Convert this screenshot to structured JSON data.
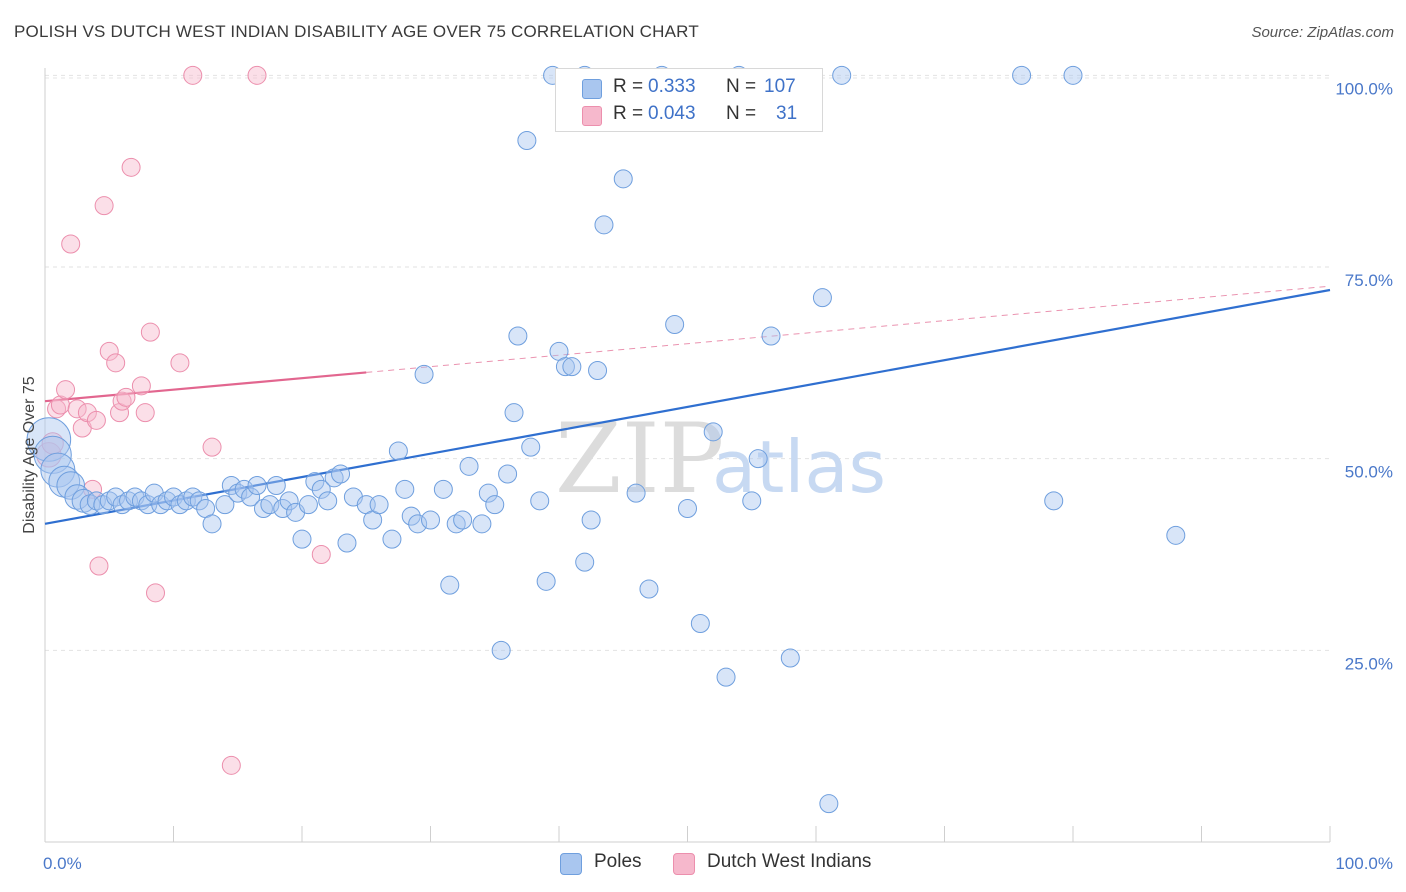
{
  "header": {
    "title": "POLISH VS DUTCH WEST INDIAN DISABILITY AGE OVER 75 CORRELATION CHART",
    "source": "Source: ZipAtlas.com"
  },
  "watermark": {
    "zip": "ZIP",
    "atlas": "atlas"
  },
  "legend_top": {
    "rows": [
      {
        "r_label": "R =",
        "r_value": "0.333",
        "n_label": "N =",
        "n_value": "107",
        "color": "#a9c6ef"
      },
      {
        "r_label": "R =",
        "r_value": "0.043",
        "n_label": "N =",
        "n_value": "31",
        "color": "#f6b8cc"
      }
    ]
  },
  "legend_bottom": {
    "items": [
      {
        "label": "Poles",
        "color": "#a9c6ef"
      },
      {
        "label": "Dutch West Indians",
        "color": "#f6b8cc"
      }
    ]
  },
  "chart_data": {
    "type": "scatter",
    "title": "POLISH VS DUTCH WEST INDIAN DISABILITY AGE OVER 75 CORRELATION CHART",
    "xlabel": "",
    "ylabel": "Disability Age Over 75",
    "xlim": [
      0,
      100
    ],
    "ylim": [
      0,
      102
    ],
    "x_ticks": [
      {
        "value": 0,
        "label": "0.0%"
      },
      {
        "value": 100,
        "label": "100.0%"
      }
    ],
    "y_ticks": [
      {
        "value": 25,
        "label": "25.0%"
      },
      {
        "value": 50,
        "label": "50.0%"
      },
      {
        "value": 75,
        "label": "75.0%"
      },
      {
        "value": 100,
        "label": "100.0%"
      }
    ],
    "grid": true,
    "legend_position": "bottom",
    "colors": {
      "poles_fill": "#a9c6ef",
      "poles_stroke": "#6f9fde",
      "poles_line": "#2f6fd0",
      "dwi_fill": "#f6b8cc",
      "dwi_stroke": "#ec8fad",
      "dwi_line": "#e2668f"
    },
    "series": [
      {
        "name": "Poles",
        "trend": {
          "x": [
            0,
            100
          ],
          "y": [
            41.5,
            72.0
          ],
          "dashed_from": null
        },
        "points": [
          [
            0.3,
            52.5,
            26
          ],
          [
            0.6,
            50.5,
            22
          ],
          [
            1.0,
            48.5,
            20
          ],
          [
            1.5,
            47.0,
            18
          ],
          [
            2.0,
            46.5,
            16
          ],
          [
            2.5,
            45.0,
            14
          ],
          [
            3.0,
            44.5,
            13
          ],
          [
            3.5,
            44.0,
            11
          ],
          [
            4.0,
            44.5,
            10
          ],
          [
            4.5,
            44.0,
            10
          ],
          [
            5.0,
            44.5,
            10
          ],
          [
            5.5,
            45.0,
            10
          ],
          [
            6.0,
            44.0,
            10
          ],
          [
            6.5,
            44.5,
            10
          ],
          [
            7.0,
            45.0,
            10
          ],
          [
            7.5,
            44.5,
            10
          ],
          [
            8.0,
            44.0,
            10
          ],
          [
            8.5,
            45.5,
            10
          ],
          [
            9.0,
            44.0,
            10
          ],
          [
            9.5,
            44.5,
            10
          ],
          [
            10.0,
            45.0,
            10
          ],
          [
            10.5,
            44.0,
            10
          ],
          [
            11.0,
            44.5,
            10
          ],
          [
            11.5,
            45.0,
            10
          ],
          [
            12.0,
            44.5,
            10
          ],
          [
            12.5,
            43.5,
            10
          ],
          [
            13.0,
            41.5,
            10
          ],
          [
            14.0,
            44.0,
            10
          ],
          [
            14.5,
            46.5,
            10
          ],
          [
            15.0,
            45.5,
            10
          ],
          [
            15.5,
            46.0,
            10
          ],
          [
            16.0,
            45.0,
            10
          ],
          [
            16.5,
            46.5,
            10
          ],
          [
            17.0,
            43.5,
            10
          ],
          [
            17.5,
            44.0,
            10
          ],
          [
            18.0,
            46.5,
            10
          ],
          [
            18.5,
            43.5,
            10
          ],
          [
            19.0,
            44.5,
            10
          ],
          [
            19.5,
            43.0,
            10
          ],
          [
            20.0,
            39.5,
            10
          ],
          [
            20.5,
            44.0,
            10
          ],
          [
            21.0,
            47.0,
            10
          ],
          [
            21.5,
            46.0,
            10
          ],
          [
            22.0,
            44.5,
            10
          ],
          [
            22.5,
            47.5,
            10
          ],
          [
            23.0,
            48.0,
            10
          ],
          [
            23.5,
            39.0,
            10
          ],
          [
            24.0,
            45.0,
            10
          ],
          [
            25.0,
            44.0,
            10
          ],
          [
            25.5,
            42.0,
            10
          ],
          [
            26.0,
            44.0,
            10
          ],
          [
            27.0,
            39.5,
            10
          ],
          [
            27.5,
            51.0,
            10
          ],
          [
            28.0,
            46.0,
            10
          ],
          [
            28.5,
            42.5,
            10
          ],
          [
            29.0,
            41.5,
            10
          ],
          [
            29.5,
            61.0,
            10
          ],
          [
            30.0,
            42.0,
            10
          ],
          [
            31.0,
            46.0,
            10
          ],
          [
            31.5,
            33.5,
            10
          ],
          [
            32.0,
            41.5,
            10
          ],
          [
            32.5,
            42.0,
            10
          ],
          [
            33.0,
            49.0,
            10
          ],
          [
            34.0,
            41.5,
            10
          ],
          [
            34.5,
            45.5,
            10
          ],
          [
            35.0,
            44.0,
            10
          ],
          [
            35.5,
            25.0,
            10
          ],
          [
            36.0,
            48.0,
            10
          ],
          [
            36.5,
            56.0,
            10
          ],
          [
            36.8,
            66.0,
            10
          ],
          [
            37.5,
            91.5,
            10
          ],
          [
            37.8,
            51.5,
            10
          ],
          [
            38.5,
            44.5,
            10
          ],
          [
            39.0,
            34.0,
            10
          ],
          [
            39.5,
            100.0,
            10
          ],
          [
            40.0,
            64.0,
            10
          ],
          [
            40.5,
            62.0,
            10
          ],
          [
            41.0,
            62.0,
            10
          ],
          [
            42.0,
            100.0,
            10
          ],
          [
            42.0,
            36.5,
            10
          ],
          [
            42.5,
            42.0,
            10
          ],
          [
            43.0,
            61.5,
            10
          ],
          [
            43.5,
            80.5,
            10
          ],
          [
            45.0,
            86.5,
            10
          ],
          [
            46.0,
            45.5,
            10
          ],
          [
            47.0,
            33.0,
            10
          ],
          [
            48.0,
            100.0,
            10
          ],
          [
            49.0,
            67.5,
            10
          ],
          [
            50.0,
            43.5,
            10
          ],
          [
            51.0,
            28.5,
            10
          ],
          [
            52.0,
            53.5,
            10
          ],
          [
            53.0,
            21.5,
            10
          ],
          [
            54.0,
            100.0,
            10
          ],
          [
            55.0,
            44.5,
            10
          ],
          [
            55.5,
            50.0,
            10
          ],
          [
            56.5,
            66.0,
            10
          ],
          [
            58.0,
            24.0,
            10
          ],
          [
            60.5,
            71.0,
            10
          ],
          [
            61.0,
            5.0,
            10
          ],
          [
            62.0,
            100.0,
            10
          ],
          [
            76.0,
            100.0,
            10
          ],
          [
            78.5,
            44.5,
            10
          ],
          [
            80.0,
            100.0,
            10
          ],
          [
            88.0,
            40.0,
            10
          ]
        ]
      },
      {
        "name": "Dutch West Indians",
        "trend": {
          "x": [
            0,
            100
          ],
          "y": [
            57.5,
            72.5
          ],
          "dashed_from": 25
        },
        "points": [
          [
            0.3,
            50.5,
            14
          ],
          [
            0.6,
            52.0,
            12
          ],
          [
            0.9,
            56.5,
            10
          ],
          [
            1.2,
            57.0,
            10
          ],
          [
            1.6,
            59.0,
            10
          ],
          [
            2.0,
            78.0,
            10
          ],
          [
            2.5,
            56.5,
            10
          ],
          [
            2.9,
            54.0,
            10
          ],
          [
            3.3,
            56.0,
            10
          ],
          [
            3.7,
            46.0,
            10
          ],
          [
            4.0,
            55.0,
            10
          ],
          [
            4.2,
            36.0,
            10
          ],
          [
            4.6,
            83.0,
            10
          ],
          [
            5.0,
            64.0,
            10
          ],
          [
            5.5,
            62.5,
            10
          ],
          [
            5.8,
            56.0,
            10
          ],
          [
            6.0,
            57.5,
            10
          ],
          [
            6.3,
            58.0,
            10
          ],
          [
            6.7,
            88.0,
            10
          ],
          [
            7.5,
            59.5,
            10
          ],
          [
            7.8,
            56.0,
            10
          ],
          [
            8.2,
            66.5,
            10
          ],
          [
            8.6,
            32.5,
            10
          ],
          [
            10.5,
            62.5,
            10
          ],
          [
            11.5,
            100.0,
            10
          ],
          [
            13.0,
            51.5,
            10
          ],
          [
            14.5,
            10.0,
            10
          ],
          [
            16.5,
            100.0,
            10
          ],
          [
            21.5,
            37.5,
            10
          ]
        ]
      }
    ]
  }
}
